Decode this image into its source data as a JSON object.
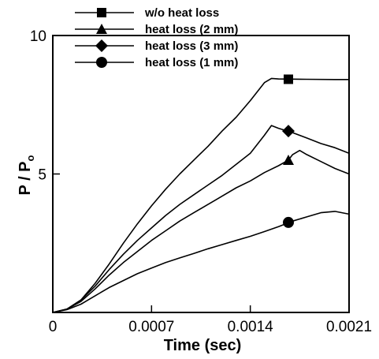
{
  "chart_data": {
    "type": "line",
    "xlabel": "Time (sec)",
    "ylabel_main": "P / P",
    "ylabel_sub": "o",
    "xlim": [
      0,
      0.0021
    ],
    "ylim": [
      0,
      10
    ],
    "x_ticks": [
      0,
      0.0007,
      0.0014,
      0.0021
    ],
    "x_tick_labels": [
      "0",
      "0.0007",
      "0.0014",
      "0.0021"
    ],
    "y_ticks": [
      5,
      10
    ],
    "y_tick_labels": [
      "5",
      "10"
    ],
    "grid": false,
    "legend_position": "top-left",
    "series": [
      {
        "name": "w/o heat loss",
        "marker": "square",
        "marker_at": [
          0.00167,
          8.42
        ],
        "x": [
          0,
          0.0001,
          0.0002,
          0.0003,
          0.0004,
          0.0005,
          0.0006,
          0.0007,
          0.0008,
          0.0009,
          0.001,
          0.0011,
          0.0012,
          0.0013,
          0.0014,
          0.0015,
          0.00155,
          0.0016,
          0.0018,
          0.002,
          0.0021
        ],
        "y": [
          0,
          0.12,
          0.45,
          1.05,
          1.75,
          2.5,
          3.2,
          3.85,
          4.45,
          5.0,
          5.5,
          6.0,
          6.55,
          7.05,
          7.65,
          8.3,
          8.45,
          8.43,
          8.42,
          8.41,
          8.41
        ]
      },
      {
        "name": "heat loss (2 mm)",
        "marker": "triangle",
        "marker_at": [
          0.00167,
          5.5
        ],
        "x": [
          0,
          0.0001,
          0.0002,
          0.0003,
          0.0004,
          0.0005,
          0.0006,
          0.0007,
          0.0008,
          0.0009,
          0.001,
          0.0011,
          0.0012,
          0.0013,
          0.0014,
          0.0015,
          0.0016,
          0.00167,
          0.0017,
          0.00175,
          0.0018,
          0.0019,
          0.002,
          0.0021
        ],
        "y": [
          0,
          0.12,
          0.4,
          0.85,
          1.35,
          1.8,
          2.2,
          2.6,
          2.95,
          3.3,
          3.6,
          3.9,
          4.2,
          4.5,
          4.75,
          5.05,
          5.3,
          5.5,
          5.7,
          5.85,
          5.7,
          5.45,
          5.2,
          5.0
        ]
      },
      {
        "name": "heat loss (3 mm)",
        "marker": "diamond",
        "marker_at": [
          0.00167,
          6.55
        ],
        "x": [
          0,
          0.0001,
          0.0002,
          0.0003,
          0.0004,
          0.0005,
          0.0006,
          0.0007,
          0.0008,
          0.0009,
          0.001,
          0.0011,
          0.0012,
          0.0013,
          0.0014,
          0.0015,
          0.00155,
          0.0016,
          0.00163,
          0.00167,
          0.0018,
          0.0019,
          0.002,
          0.0021
        ],
        "y": [
          0,
          0.12,
          0.45,
          0.95,
          1.55,
          2.1,
          2.6,
          3.05,
          3.5,
          3.9,
          4.25,
          4.6,
          4.95,
          5.35,
          5.75,
          6.4,
          6.75,
          6.65,
          6.6,
          6.55,
          6.3,
          6.1,
          5.95,
          5.75
        ]
      },
      {
        "name": "heat loss (1 mm)",
        "marker": "circle",
        "marker_at": [
          0.00167,
          3.25
        ],
        "x": [
          0,
          0.0001,
          0.0002,
          0.0003,
          0.0004,
          0.0005,
          0.0006,
          0.0007,
          0.0008,
          0.0009,
          0.001,
          0.0011,
          0.0012,
          0.0013,
          0.0014,
          0.0015,
          0.0016,
          0.0017,
          0.0018,
          0.0019,
          0.002,
          0.0021
        ],
        "y": [
          0,
          0.1,
          0.3,
          0.6,
          0.9,
          1.15,
          1.4,
          1.6,
          1.8,
          1.97,
          2.13,
          2.3,
          2.45,
          2.6,
          2.75,
          2.92,
          3.1,
          3.3,
          3.45,
          3.6,
          3.65,
          3.55
        ]
      }
    ]
  }
}
